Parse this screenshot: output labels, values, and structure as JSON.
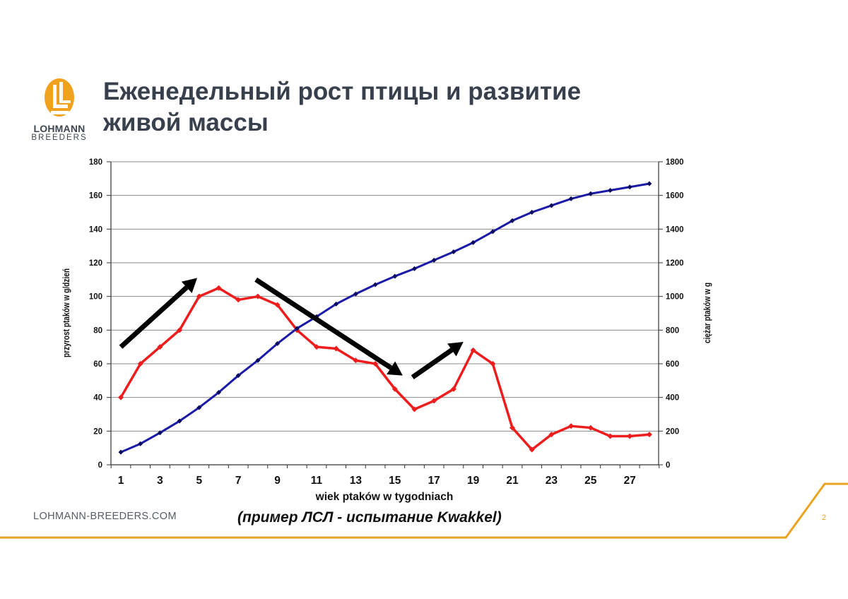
{
  "slide": {
    "title_lines": [
      "Еженедельный рост птицы и развитие",
      "живой массы"
    ],
    "logo": {
      "line1": "LOHMANN",
      "line2": "BREEDERS",
      "brand_color": "#f0a21e",
      "icon": "lohmann-ll-logo-icon"
    },
    "website": "LOHMANN-BREEDERS.COM",
    "caption": "(пример ЛСЛ - испытание Kwakkel)",
    "page_number": "2",
    "accent_color": "#e8a320"
  },
  "chart_data": {
    "type": "line",
    "x": [
      1,
      2,
      3,
      4,
      5,
      6,
      7,
      8,
      9,
      10,
      11,
      12,
      13,
      14,
      15,
      16,
      17,
      18,
      19,
      20,
      21,
      22,
      23,
      24,
      25,
      26,
      27,
      28
    ],
    "x_tick_labels": [
      "1",
      "3",
      "5",
      "7",
      "9",
      "11",
      "13",
      "15",
      "17",
      "19",
      "21",
      "23",
      "25",
      "27"
    ],
    "xlabel": "wiek ptaków w tygodniach",
    "ylabel_left": "przyrost ptaków w g/dzień",
    "ylabel_right": "ciężar ptaków w g",
    "ylim_left": [
      0,
      180
    ],
    "ylim_right": [
      0,
      1800
    ],
    "y_ticks_left": [
      "0",
      "20",
      "40",
      "60",
      "80",
      "100",
      "120",
      "140",
      "160",
      "180"
    ],
    "y_ticks_right": [
      "0",
      "200",
      "400",
      "600",
      "800",
      "1000",
      "1200",
      "1400",
      "1600",
      "1800"
    ],
    "grid": true,
    "series": [
      {
        "axis": "left",
        "color": "#ee1c1c",
        "values": [
          40,
          60,
          70,
          80,
          100,
          105,
          98,
          100,
          95,
          80,
          70,
          69,
          62,
          60,
          45,
          33,
          38,
          45,
          68,
          60,
          22,
          9,
          18,
          23,
          22,
          17,
          17,
          18
        ]
      },
      {
        "axis": "right",
        "color": "#1a1aa8",
        "values": [
          75,
          125,
          190,
          260,
          340,
          430,
          530,
          620,
          720,
          810,
          880,
          955,
          1015,
          1070,
          1120,
          1165,
          1215,
          1265,
          1320,
          1385,
          1450,
          1500,
          1540,
          1580,
          1610,
          1630,
          1650,
          1670
        ]
      }
    ],
    "annotations": [
      {
        "kind": "arrow",
        "direction": "up",
        "from": [
          1,
          70
        ],
        "to": [
          4.9,
          111
        ]
      },
      {
        "kind": "arrow",
        "direction": "down",
        "from": [
          7.9,
          110
        ],
        "to": [
          15.4,
          53
        ]
      },
      {
        "kind": "arrow",
        "direction": "up",
        "from": [
          15.9,
          52
        ],
        "to": [
          18.5,
          73
        ]
      }
    ]
  }
}
